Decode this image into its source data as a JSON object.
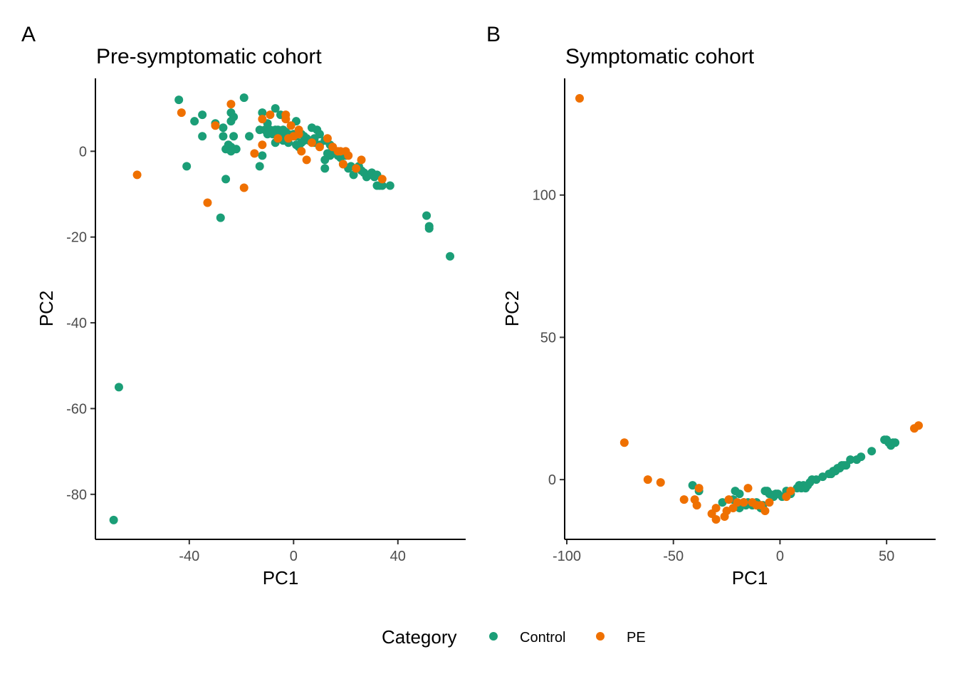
{
  "legend": {
    "title": "Category",
    "entries": [
      {
        "label": "Control",
        "color": "#1b9e77"
      },
      {
        "label": "PE",
        "color": "#ef7000"
      }
    ]
  },
  "chart_data": [
    {
      "type": "scatter",
      "panel": "A",
      "title": "Pre-symptomatic cohort",
      "xlabel": "PC1",
      "ylabel": "PC2",
      "xlim": [
        -76,
        66
      ],
      "ylim": [
        -90.5,
        17
      ],
      "xticks": [
        -40,
        0,
        40
      ],
      "yticks": [
        0,
        -20,
        -40,
        -60,
        -80
      ],
      "series": [
        {
          "name": "Control",
          "points": [
            [
              -44,
              12
            ],
            [
              -19,
              12.5
            ],
            [
              -35,
              8.5
            ],
            [
              -38,
              7
            ],
            [
              -30,
              6.5
            ],
            [
              -24,
              9
            ],
            [
              -24,
              7
            ],
            [
              -23,
              8
            ],
            [
              -27,
              5.5
            ],
            [
              -35,
              3.5
            ],
            [
              -27,
              3.5
            ],
            [
              -23,
              3.5
            ],
            [
              -17,
              3.5
            ],
            [
              -25,
              1.5
            ],
            [
              -24,
              1
            ],
            [
              -22,
              0.5
            ],
            [
              -26,
              0.5
            ],
            [
              -24,
              0
            ],
            [
              -12,
              9
            ],
            [
              -10,
              6.5
            ],
            [
              -7,
              10
            ],
            [
              -5,
              8.5
            ],
            [
              -13,
              5
            ],
            [
              -11,
              5
            ],
            [
              -9,
              5
            ],
            [
              -7,
              5
            ],
            [
              -6,
              5
            ],
            [
              -8,
              4
            ],
            [
              -5,
              3.5
            ],
            [
              -7,
              2
            ],
            [
              -4,
              2.5
            ],
            [
              -3,
              4.5
            ],
            [
              -2,
              4
            ],
            [
              0,
              4
            ],
            [
              1,
              7
            ],
            [
              1,
              3.5
            ],
            [
              3,
              4
            ],
            [
              4,
              3.5
            ],
            [
              5,
              3
            ],
            [
              7,
              5.5
            ],
            [
              9,
              5
            ],
            [
              6,
              2.5
            ],
            [
              8,
              2
            ],
            [
              10,
              1.5
            ],
            [
              12,
              2.5
            ],
            [
              14,
              1.5
            ],
            [
              15,
              0.5
            ],
            [
              14,
              -1
            ],
            [
              13,
              -0.5
            ],
            [
              16,
              0
            ],
            [
              17,
              -1
            ],
            [
              18,
              -1.5
            ],
            [
              20,
              -1
            ],
            [
              19,
              -3
            ],
            [
              21,
              -4
            ],
            [
              22,
              -3.5
            ],
            [
              23,
              -5.5
            ],
            [
              24,
              -4
            ],
            [
              25,
              -3.5
            ],
            [
              26,
              -4.5
            ],
            [
              27,
              -5
            ],
            [
              28,
              -6
            ],
            [
              29,
              -5.5
            ],
            [
              30,
              -5
            ],
            [
              31,
              -6
            ],
            [
              32,
              -5.5
            ],
            [
              32,
              -8
            ],
            [
              33,
              -8
            ],
            [
              34,
              -8
            ],
            [
              37,
              -8
            ],
            [
              12,
              -2
            ],
            [
              12,
              -4
            ],
            [
              -12,
              -1
            ],
            [
              -13,
              -3.5
            ],
            [
              -26,
              -6.5
            ],
            [
              -28,
              -15.5
            ],
            [
              -41,
              -3.5
            ],
            [
              1,
              1.5
            ],
            [
              2,
              1
            ],
            [
              3,
              2
            ],
            [
              4,
              2.5
            ],
            [
              -2,
              2
            ],
            [
              -4,
              5
            ],
            [
              -10,
              4
            ],
            [
              10,
              4
            ],
            [
              8,
              3
            ],
            [
              51,
              -15
            ],
            [
              52,
              -17.5
            ],
            [
              52,
              -18
            ],
            [
              60,
              -24.5
            ],
            [
              -67,
              -55
            ],
            [
              -69,
              -86
            ]
          ]
        },
        {
          "name": "PE",
          "points": [
            [
              -60,
              -5.5
            ],
            [
              -43,
              9
            ],
            [
              -30,
              6
            ],
            [
              -24,
              11
            ],
            [
              -12,
              7.5
            ],
            [
              -9,
              8.5
            ],
            [
              -3,
              7.5
            ],
            [
              -3,
              8.5
            ],
            [
              -1,
              6
            ],
            [
              2,
              4
            ],
            [
              0,
              3.5
            ],
            [
              -2,
              3
            ],
            [
              -12,
              1.5
            ],
            [
              -15,
              -0.5
            ],
            [
              -19,
              -8.5
            ],
            [
              -33,
              -12
            ],
            [
              3,
              0
            ],
            [
              5,
              -2
            ],
            [
              7,
              2
            ],
            [
              10,
              1
            ],
            [
              13,
              3
            ],
            [
              15,
              1
            ],
            [
              17,
              0
            ],
            [
              18,
              0
            ],
            [
              20,
              0
            ],
            [
              19,
              -3
            ],
            [
              21,
              -1
            ],
            [
              24,
              -4
            ],
            [
              26,
              -2
            ],
            [
              34,
              -6.5
            ],
            [
              -6,
              3
            ],
            [
              2,
              5
            ]
          ]
        }
      ]
    },
    {
      "type": "scatter",
      "panel": "B",
      "title": "Symptomatic cohort",
      "xlabel": "PC1",
      "ylabel": "PC2",
      "xlim": [
        -101,
        73
      ],
      "ylim": [
        -21,
        141
      ],
      "xticks": [
        -100,
        -50,
        0,
        50
      ],
      "yticks": [
        0,
        50,
        100
      ],
      "series": [
        {
          "name": "Control",
          "points": [
            [
              -41,
              -2
            ],
            [
              -38,
              -4
            ],
            [
              -27,
              -8
            ],
            [
              -22,
              -7
            ],
            [
              -20,
              -9
            ],
            [
              -19,
              -10
            ],
            [
              -21,
              -4
            ],
            [
              -19,
              -5
            ],
            [
              -17,
              -8
            ],
            [
              -16,
              -9
            ],
            [
              -15,
              -8
            ],
            [
              -13,
              -9
            ],
            [
              -11,
              -8
            ],
            [
              -9,
              -10
            ],
            [
              -8,
              -9
            ],
            [
              -7,
              -4
            ],
            [
              -6,
              -4
            ],
            [
              -5,
              -5
            ],
            [
              -3,
              -6
            ],
            [
              -2,
              -5
            ],
            [
              -1,
              -5
            ],
            [
              1,
              -6
            ],
            [
              3,
              -4
            ],
            [
              5,
              -5
            ],
            [
              8,
              -3
            ],
            [
              9,
              -2
            ],
            [
              10,
              -3
            ],
            [
              11,
              -2
            ],
            [
              12,
              -3
            ],
            [
              13,
              -2
            ],
            [
              14,
              -1
            ],
            [
              15,
              0
            ],
            [
              17,
              0
            ],
            [
              20,
              1
            ],
            [
              23,
              2
            ],
            [
              24,
              2
            ],
            [
              25,
              3
            ],
            [
              26,
              3
            ],
            [
              27,
              4
            ],
            [
              28,
              4
            ],
            [
              29,
              5
            ],
            [
              30,
              5
            ],
            [
              31,
              5
            ],
            [
              33,
              7
            ],
            [
              36,
              7
            ],
            [
              38,
              8
            ],
            [
              43,
              10
            ],
            [
              49,
              14
            ],
            [
              50,
              14
            ],
            [
              51,
              13
            ],
            [
              52,
              12
            ],
            [
              53,
              13
            ],
            [
              54,
              13
            ]
          ]
        },
        {
          "name": "PE",
          "points": [
            [
              -94,
              134
            ],
            [
              -73,
              13
            ],
            [
              -62,
              0
            ],
            [
              -56,
              -1
            ],
            [
              -45,
              -7
            ],
            [
              -40,
              -7
            ],
            [
              -39,
              -9
            ],
            [
              -38,
              -3
            ],
            [
              -32,
              -12
            ],
            [
              -30,
              -14
            ],
            [
              -30,
              -10
            ],
            [
              -26,
              -13
            ],
            [
              -25,
              -11
            ],
            [
              -24,
              -7
            ],
            [
              -22,
              -10
            ],
            [
              -20,
              -8
            ],
            [
              -17,
              -8
            ],
            [
              -15,
              -3
            ],
            [
              -13,
              -8
            ],
            [
              -11,
              -9
            ],
            [
              -9,
              -9
            ],
            [
              -7,
              -11
            ],
            [
              -5,
              -8
            ],
            [
              3,
              -6
            ],
            [
              5,
              -4
            ],
            [
              63,
              18
            ],
            [
              65,
              19
            ]
          ]
        }
      ]
    }
  ]
}
